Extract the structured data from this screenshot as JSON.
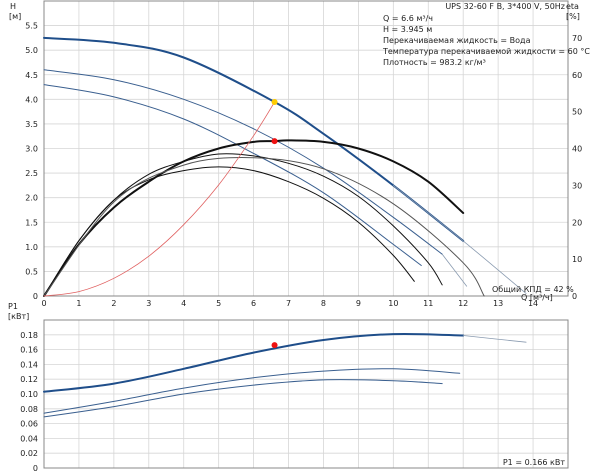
{
  "header": "UPS 32-60 F B, 3*400 V, 50Hz",
  "info_lines": [
    "Q = 6.6 м³/ч",
    "H = 3.945 м",
    "Перекачиваемая жидкость = Вода",
    "Температура перекачиваемой жидкости = 60 °C",
    "Плотность = 983.2 кг/м³"
  ],
  "eff_note": "Общий КПД = 42 %",
  "power_note": "P1 = 0.166 кВт",
  "colors": {
    "speed1": "#1f4e8a",
    "lower_speeds": "#3a5f8f",
    "efficiency": "#111111",
    "system_curve": "#e06060",
    "duty_head": "#ffcc00",
    "duty_point": "#ee1111",
    "grid": "#d6d6d6"
  },
  "chart_data": [
    {
      "id": "head",
      "type": "line",
      "ylabel": "H\n[м]",
      "ylabel_right": "eta\n[%]",
      "xlabel": "Q [м³/ч]",
      "xlim": [
        0,
        15
      ],
      "ylim": [
        0,
        6
      ],
      "ylim_right": [
        0,
        80
      ],
      "grid": true,
      "x_ticks": [
        "0",
        "1",
        "2",
        "3",
        "4",
        "5",
        "6",
        "7",
        "8",
        "9",
        "10",
        "11",
        "12",
        "13",
        "14"
      ],
      "y_ticks": [
        "0",
        "0.5",
        "1.0",
        "1.5",
        "2.0",
        "2.5",
        "3.0",
        "3.5",
        "4.0",
        "4.5",
        "5.0",
        "5.5"
      ],
      "y_right_ticks": [
        "0",
        "10",
        "20",
        "30",
        "40",
        "50",
        "60",
        "70"
      ],
      "series": [
        {
          "role": "head-speed-1",
          "axis": "left",
          "width": 2,
          "points": [
            [
              0,
              5.25
            ],
            [
              2,
              5.15
            ],
            [
              4,
              4.85
            ],
            [
              6.6,
              3.945
            ],
            [
              8,
              3.3
            ],
            [
              10,
              2.25
            ],
            [
              12,
              1.12
            ]
          ]
        },
        {
          "role": "head-speed-2",
          "axis": "left",
          "width": 1,
          "points": [
            [
              0,
              4.6
            ],
            [
              2,
              4.4
            ],
            [
              4,
              4.0
            ],
            [
              6,
              3.4
            ],
            [
              8,
              2.6
            ],
            [
              10,
              1.6
            ],
            [
              11.4,
              0.85
            ]
          ]
        },
        {
          "role": "head-speed-3",
          "axis": "left",
          "width": 1,
          "points": [
            [
              0,
              4.3
            ],
            [
              2,
              4.05
            ],
            [
              4,
              3.6
            ],
            [
              6,
              2.9
            ],
            [
              8,
              2.1
            ],
            [
              10,
              1.05
            ],
            [
              10.8,
              0.62
            ]
          ]
        },
        {
          "role": "efficiency-speed-1",
          "axis": "right",
          "width": 2,
          "points": [
            [
              0,
              0
            ],
            [
              1,
              14
            ],
            [
              2,
              24
            ],
            [
              3,
              31
            ],
            [
              4,
              36.5
            ],
            [
              5,
              40
            ],
            [
              6,
              41.8
            ],
            [
              6.6,
              42
            ],
            [
              7,
              42.2
            ],
            [
              8,
              41.8
            ],
            [
              9,
              40
            ],
            [
              10,
              36.5
            ],
            [
              11,
              31
            ],
            [
              12,
              22.5
            ]
          ]
        },
        {
          "role": "efficiency-speed-2",
          "axis": "right",
          "width": 1,
          "points": [
            [
              0,
              0
            ],
            [
              1,
              15
            ],
            [
              2,
              26
            ],
            [
              3,
              33
            ],
            [
              4,
              36.5
            ],
            [
              5,
              38.5
            ],
            [
              6,
              38
            ],
            [
              7,
              36
            ],
            [
              8,
              32.5
            ],
            [
              9,
              27
            ],
            [
              10,
              19
            ],
            [
              11,
              9
            ],
            [
              11.4,
              3
            ]
          ]
        },
        {
          "role": "efficiency-speed-3",
          "axis": "right",
          "width": 1,
          "points": [
            [
              0,
              0
            ],
            [
              1,
              15
            ],
            [
              2,
              26
            ],
            [
              3,
              31.5
            ],
            [
              4,
              34
            ],
            [
              5,
              35
            ],
            [
              6,
              34
            ],
            [
              7,
              31
            ],
            [
              8,
              26.5
            ],
            [
              9,
              20
            ],
            [
              10,
              11
            ],
            [
              10.6,
              4
            ]
          ]
        },
        {
          "role": "efficiency-speed-1-faint",
          "axis": "right",
          "width": 1,
          "points": [
            [
              0,
              0
            ],
            [
              2,
              25.5
            ],
            [
              4,
              35.5
            ],
            [
              6,
              37.5
            ],
            [
              8,
              34.5
            ],
            [
              10,
              25
            ],
            [
              12,
              9
            ],
            [
              12.6,
              0
            ]
          ]
        },
        {
          "role": "extension-1",
          "axis": "left",
          "width": 0.8,
          "points": [
            [
              10,
              2.25
            ],
            [
              12,
              1.12
            ],
            [
              13.8,
              0.05
            ]
          ]
        },
        {
          "role": "extension-2",
          "axis": "left",
          "width": 0.8,
          "points": [
            [
              11.4,
              0.85
            ],
            [
              12.1,
              0.2
            ]
          ]
        },
        {
          "role": "system-curve",
          "axis": "left",
          "width": 0.8,
          "points": [
            [
              0,
              0
            ],
            [
              1,
              0.09
            ],
            [
              2,
              0.36
            ],
            [
              3,
              0.81
            ],
            [
              4,
              1.45
            ],
            [
              5,
              2.26
            ],
            [
              6,
              3.26
            ],
            [
              6.6,
              3.945
            ]
          ]
        }
      ],
      "duty_points": [
        {
          "role": "duty-head",
          "axis": "left",
          "x": 6.6,
          "y": 3.945
        },
        {
          "role": "duty-efficiency",
          "axis": "right",
          "x": 6.6,
          "y": 42
        }
      ]
    },
    {
      "id": "power",
      "type": "line",
      "ylabel": "P1\n[кВт]",
      "xlim": [
        0,
        15
      ],
      "ylim": [
        0,
        0.2
      ],
      "grid": true,
      "y_ticks": [
        "0",
        "0.02",
        "0.04",
        "0.06",
        "0.08",
        "0.10",
        "0.12",
        "0.14",
        "0.16",
        "0.18"
      ],
      "series": [
        {
          "role": "power-speed-1",
          "width": 2,
          "points": [
            [
              0,
              0.103
            ],
            [
              2,
              0.114
            ],
            [
              4,
              0.134
            ],
            [
              6,
              0.156
            ],
            [
              8,
              0.173
            ],
            [
              10,
              0.181
            ],
            [
              12,
              0.179
            ]
          ]
        },
        {
          "role": "power-speed-1-ext",
          "width": 0.8,
          "points": [
            [
              12,
              0.179
            ],
            [
              13.8,
              0.17
            ]
          ]
        },
        {
          "role": "power-speed-2",
          "width": 1,
          "points": [
            [
              0,
              0.074
            ],
            [
              2,
              0.09
            ],
            [
              4,
              0.108
            ],
            [
              6,
              0.122
            ],
            [
              8,
              0.131
            ],
            [
              10,
              0.134
            ],
            [
              11.9,
              0.128
            ]
          ]
        },
        {
          "role": "power-speed-3",
          "width": 1,
          "points": [
            [
              0,
              0.069
            ],
            [
              2,
              0.083
            ],
            [
              4,
              0.1
            ],
            [
              6,
              0.112
            ],
            [
              8,
              0.119
            ],
            [
              10,
              0.118
            ],
            [
              11.4,
              0.114
            ]
          ]
        }
      ],
      "duty_points": [
        {
          "role": "duty-power",
          "x": 6.6,
          "y": 0.166
        }
      ]
    }
  ]
}
